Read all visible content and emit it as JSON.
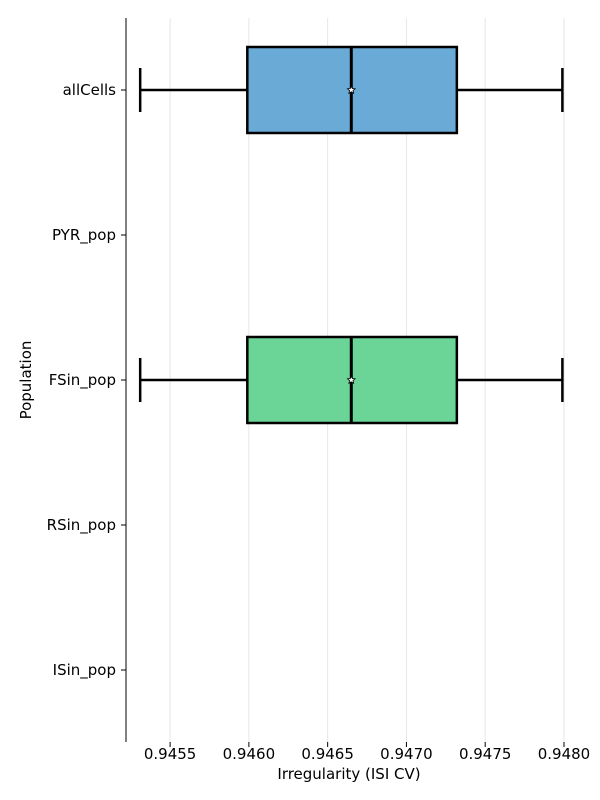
{
  "chart_data": {
    "type": "boxplot",
    "orientation": "horizontal",
    "title": "",
    "xlabel": "Irregularity (ISI CV)",
    "ylabel": "Population",
    "xlim": [
      0.94522,
      0.94807
    ],
    "xticks": [
      0.9455,
      0.946,
      0.9465,
      0.947,
      0.9475,
      0.948
    ],
    "xtick_labels": [
      "0.9455",
      "0.9460",
      "0.9465",
      "0.9470",
      "0.9475",
      "0.9480"
    ],
    "grid": "vertical",
    "categories": [
      "allCells",
      "PYR_pop",
      "FSin_pop",
      "RSin_pop",
      "ISin_pop"
    ],
    "boxes": [
      {
        "category": "allCells",
        "whisker_low": 0.94531,
        "q1": 0.94599,
        "median": 0.94665,
        "q3": 0.94732,
        "whisker_high": 0.94799,
        "mean": 0.94665,
        "color": "#6aaad7"
      },
      {
        "category": "PYR_pop"
      },
      {
        "category": "FSin_pop",
        "whisker_low": 0.94531,
        "q1": 0.94599,
        "median": 0.94665,
        "q3": 0.94732,
        "whisker_high": 0.94799,
        "mean": 0.94665,
        "color": "#6ad597"
      },
      {
        "category": "RSin_pop"
      },
      {
        "category": "ISin_pop"
      }
    ]
  }
}
